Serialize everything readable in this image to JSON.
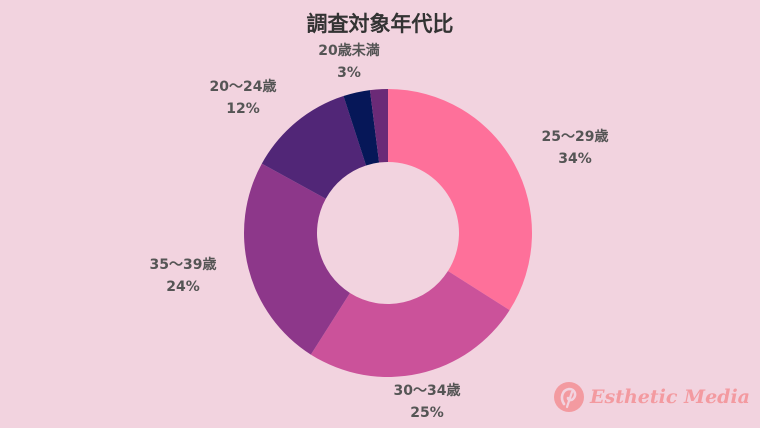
{
  "chart_data": {
    "type": "pie",
    "donut": true,
    "title": "調査対象年代比",
    "slices": [
      {
        "label": "25〜29歳",
        "percent_label": "34%",
        "value": 34,
        "color": "#fe709a"
      },
      {
        "label": "30〜34歳",
        "percent_label": "25%",
        "value": 25,
        "color": "#cb529a"
      },
      {
        "label": "35〜39歳",
        "percent_label": "24%",
        "value": 24,
        "color": "#8d378a"
      },
      {
        "label": "20〜24歳",
        "percent_label": "12%",
        "value": 12,
        "color": "#512677"
      },
      {
        "label": "20歳未満",
        "percent_label": "3%",
        "value": 3,
        "color": "#061758"
      },
      {
        "label": "",
        "percent_label": "",
        "value": 2,
        "color": "#6b2a77"
      }
    ]
  },
  "logo": {
    "text": "Esthetic Media",
    "color": "#f39aa0"
  }
}
